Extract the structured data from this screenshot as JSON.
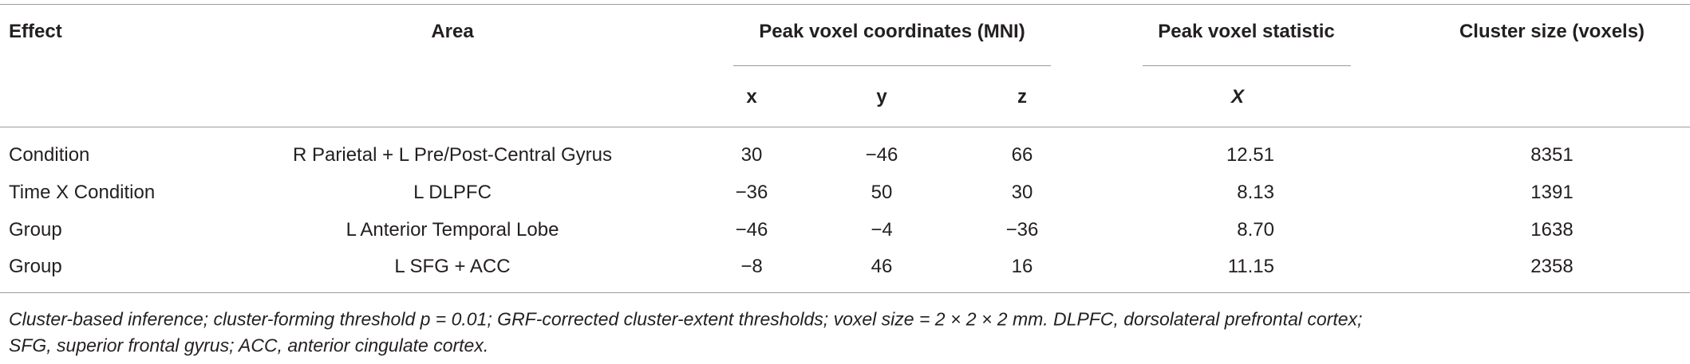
{
  "table": {
    "header": [
      "Effect",
      "Area",
      "Peak voxel coordinates (MNI)",
      "Peak voxel statistic",
      "Cluster size (voxels)"
    ],
    "subheader": [
      "x",
      "y",
      "z",
      "X"
    ],
    "rows": [
      [
        "Condition",
        "R Parietal + L Pre/Post-Central Gyrus",
        "30",
        "−46",
        "66",
        "12.51",
        "8351"
      ],
      [
        "Time X Condition",
        "L DLPFC",
        "−36",
        "50",
        "30",
        "8.13",
        "1391"
      ],
      [
        "Group",
        "L Anterior Temporal Lobe",
        "−46",
        "−4",
        "−36",
        "8.70",
        "1638"
      ],
      [
        "Group",
        "L SFG + ACC",
        "−8",
        "46",
        "16",
        "11.15",
        "2358"
      ]
    ],
    "footnote": [
      "Cluster-based inference; cluster-forming threshold p = 0.01; GRF-corrected cluster-extent thresholds; voxel size = 2 × 2 × 2 mm. DLPFC, dorsolateral prefrontal cortex;",
      "SFG, superior frontal gyrus; ACC, anterior cingulate cortex."
    ]
  }
}
